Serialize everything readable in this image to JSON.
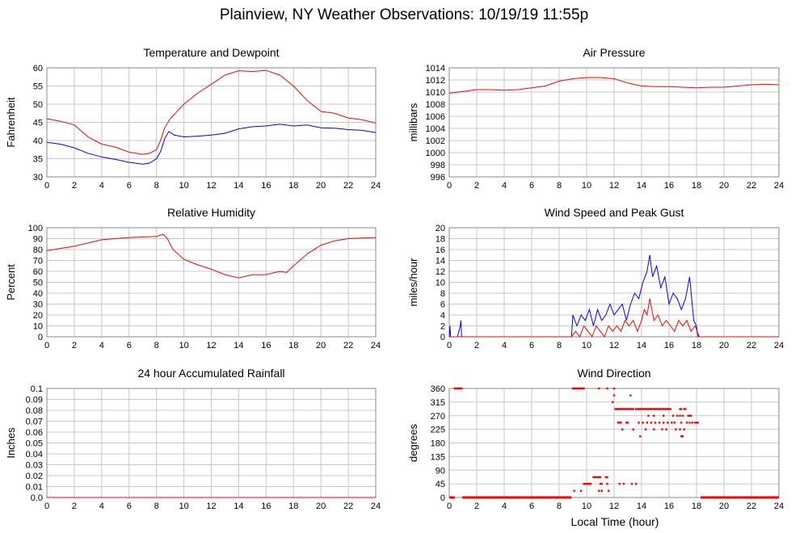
{
  "page_title": "Plainview, NY Weather Observations: 10/19/19 11:55p",
  "x_axis_label": "Local Time (hour)",
  "colors": {
    "red": "#ff0000",
    "blue": "#0000ff",
    "grid": "#c8c8c8",
    "frame": "#888888"
  },
  "chart_data": [
    {
      "id": "temp",
      "type": "line",
      "title": "Temperature and Dewpoint",
      "ylabel": "Fahrenheit",
      "xlabel": "",
      "xlim": [
        0,
        24
      ],
      "ylim": [
        30,
        60
      ],
      "x_ticks": [
        0,
        2,
        4,
        6,
        8,
        10,
        12,
        14,
        16,
        18,
        20,
        22,
        24
      ],
      "y_ticks": [
        30,
        35,
        40,
        45,
        50,
        55,
        60
      ],
      "grid": true,
      "series": [
        {
          "color": "#ff0000",
          "x": [
            0,
            1,
            2,
            3,
            4,
            5,
            6,
            7,
            7.5,
            8,
            8.3,
            8.6,
            9,
            10,
            11,
            12,
            13,
            14,
            15,
            16,
            17,
            18,
            19,
            20,
            21,
            22,
            23,
            24
          ],
          "y": [
            46,
            45.3,
            44.3,
            41,
            39,
            38.2,
            36.8,
            36.2,
            36.5,
            37.5,
            40,
            43.5,
            46,
            50,
            53,
            55.5,
            58,
            59.2,
            59,
            59.3,
            58,
            55,
            51,
            48,
            47.5,
            46.2,
            45.7,
            44.8
          ]
        },
        {
          "color": "#0000ff",
          "x": [
            0,
            1,
            2,
            3,
            4,
            5,
            6,
            7,
            7.5,
            8,
            8.3,
            8.6,
            8.9,
            9.3,
            10,
            11,
            12,
            13,
            14,
            15,
            16,
            17,
            18,
            19,
            20,
            21,
            22,
            23,
            24
          ],
          "y": [
            39.5,
            39,
            38,
            36.5,
            35.5,
            34.8,
            34,
            33.5,
            33.8,
            35,
            37,
            40.5,
            42.5,
            41.5,
            41,
            41.2,
            41.5,
            42,
            43.2,
            43.8,
            44,
            44.5,
            44,
            44.3,
            43.5,
            43.4,
            43,
            42.8,
            42.2
          ]
        }
      ]
    },
    {
      "id": "pressure",
      "type": "line",
      "title": "Air Pressure",
      "ylabel": "millibars",
      "xlabel": "",
      "xlim": [
        0,
        24
      ],
      "ylim": [
        996,
        1014
      ],
      "x_ticks": [
        0,
        2,
        4,
        6,
        8,
        10,
        12,
        14,
        16,
        18,
        20,
        22,
        24
      ],
      "y_ticks": [
        996,
        998,
        1000,
        1002,
        1004,
        1006,
        1008,
        1010,
        1012,
        1014
      ],
      "grid": true,
      "series": [
        {
          "color": "#ff0000",
          "x": [
            0,
            1,
            2,
            3,
            4,
            5,
            6,
            7,
            8,
            9,
            10,
            11,
            12,
            13,
            14,
            15,
            16,
            17,
            18,
            19,
            20,
            21,
            22,
            23,
            24
          ],
          "y": [
            1009.8,
            1010.1,
            1010.4,
            1010.4,
            1010.3,
            1010.4,
            1010.7,
            1011,
            1011.8,
            1012.2,
            1012.4,
            1012.4,
            1012.2,
            1011.5,
            1011,
            1010.9,
            1010.9,
            1010.8,
            1010.7,
            1010.8,
            1010.8,
            1011,
            1011.2,
            1011.3,
            1011.2
          ]
        }
      ]
    },
    {
      "id": "humidity",
      "type": "line",
      "title": "Relative Humidity",
      "ylabel": "Percent",
      "xlabel": "",
      "xlim": [
        0,
        24
      ],
      "ylim": [
        0,
        100
      ],
      "x_ticks": [
        0,
        2,
        4,
        6,
        8,
        10,
        12,
        14,
        16,
        18,
        20,
        22,
        24
      ],
      "y_ticks": [
        0,
        10,
        20,
        30,
        40,
        50,
        60,
        70,
        80,
        90,
        100
      ],
      "grid": true,
      "series": [
        {
          "color": "#ff0000",
          "x": [
            0,
            1,
            2,
            3,
            4,
            5,
            6,
            7,
            8,
            8.5,
            8.8,
            9.2,
            10,
            11,
            12,
            13,
            14,
            15,
            16,
            17,
            17.5,
            18,
            19,
            20,
            21,
            22,
            23,
            24
          ],
          "y": [
            79,
            81,
            83,
            86,
            89,
            90,
            91,
            91.5,
            92,
            94,
            90,
            80,
            71,
            66,
            62,
            57,
            54,
            57,
            57,
            60,
            59,
            65,
            76,
            84,
            88,
            90,
            90.5,
            91
          ]
        }
      ]
    },
    {
      "id": "wind",
      "type": "line",
      "title": "Wind Speed and Peak Gust",
      "ylabel": "miles/hour",
      "xlabel": "",
      "xlim": [
        0,
        24
      ],
      "ylim": [
        0,
        20
      ],
      "x_ticks": [
        0,
        2,
        4,
        6,
        8,
        10,
        12,
        14,
        16,
        18,
        20,
        22,
        24
      ],
      "y_ticks": [
        0,
        2,
        4,
        6,
        8,
        10,
        12,
        14,
        16,
        18,
        20
      ],
      "grid": true,
      "series": [
        {
          "color": "#0000ff",
          "x": [
            0,
            0.05,
            0.1,
            0.2,
            0.6,
            0.8,
            0.85,
            0.9,
            1,
            8.9,
            9.0,
            9.3,
            9.6,
            9.9,
            10.2,
            10.5,
            10.8,
            11.1,
            11.4,
            11.7,
            12,
            12.3,
            12.6,
            12.9,
            13.2,
            13.5,
            13.8,
            14.1,
            14.4,
            14.6,
            14.8,
            15.1,
            15.4,
            15.7,
            16,
            16.3,
            16.6,
            16.9,
            17.2,
            17.5,
            17.8,
            18,
            18.1,
            24
          ],
          "y": [
            0,
            2,
            0,
            0,
            0,
            2,
            3,
            0,
            0,
            0,
            4,
            2,
            4,
            3,
            5,
            2,
            5,
            3,
            4,
            6,
            4,
            5,
            6,
            3,
            6,
            8,
            7,
            10,
            12,
            15,
            11,
            13,
            9,
            11,
            6,
            8,
            7,
            5,
            7,
            11,
            3,
            2,
            0,
            0
          ]
        },
        {
          "color": "#ff0000",
          "x": [
            0,
            8.9,
            9.2,
            9.5,
            9.8,
            10.1,
            10.4,
            10.7,
            11,
            11.3,
            11.6,
            11.9,
            12.2,
            12.5,
            12.8,
            13.1,
            13.4,
            13.7,
            14,
            14.2,
            14.4,
            14.6,
            14.9,
            15.2,
            15.5,
            15.8,
            16.1,
            16.4,
            16.7,
            17,
            17.3,
            17.6,
            17.9,
            18.2,
            24
          ],
          "y": [
            0,
            0,
            1,
            0,
            2,
            1,
            0,
            2,
            1,
            0,
            2,
            1,
            2,
            1,
            3,
            2,
            3,
            1,
            3,
            5,
            4,
            7,
            3,
            4,
            2,
            3,
            2,
            1,
            3,
            2,
            3,
            1,
            2,
            0,
            0
          ]
        }
      ]
    },
    {
      "id": "rain",
      "type": "line",
      "title": "24 hour Accumulated Rainfall",
      "ylabel": "Inches",
      "xlabel": "",
      "xlim": [
        0,
        24
      ],
      "ylim": [
        0,
        0.1
      ],
      "x_ticks": [
        0,
        2,
        4,
        6,
        8,
        10,
        12,
        14,
        16,
        18,
        20,
        22,
        24
      ],
      "y_ticks": [
        0.0,
        0.01,
        0.02,
        0.03,
        0.04,
        0.05,
        0.06,
        0.07,
        0.08,
        0.09,
        0.1
      ],
      "y_tick_labels": [
        "0.0",
        "0.01",
        "0.02",
        "0.03",
        "0.04",
        "0.05",
        "0.06",
        "0.07",
        "0.08",
        "0.09",
        "0.1"
      ],
      "grid": true,
      "series": [
        {
          "color": "#ff0000",
          "x": [
            0,
            24
          ],
          "y": [
            0,
            0
          ]
        }
      ]
    },
    {
      "id": "direction",
      "type": "scatter",
      "title": "Wind Direction",
      "ylabel": "degrees",
      "xlabel": "Local Time (hour)",
      "xlim": [
        0,
        24
      ],
      "ylim": [
        0,
        360
      ],
      "x_ticks": [
        0,
        2,
        4,
        6,
        8,
        10,
        12,
        14,
        16,
        18,
        20,
        22,
        24
      ],
      "y_ticks": [
        0,
        45,
        90,
        135,
        180,
        225,
        270,
        315,
        360
      ],
      "grid": true,
      "series": [
        {
          "color": "#ff0000",
          "x": [
            0.4,
            0.5,
            0.6,
            0.7,
            0.8,
            0.9,
            9.0,
            9.1,
            9.2,
            9.3,
            9.4,
            9.5,
            9.6,
            9.7,
            9.8,
            10.9,
            11.5,
            9.1,
            9.6,
            9.8,
            10.5,
            10.6,
            10.7,
            10.8,
            10.9,
            11.0,
            11.4,
            11.5,
            9.9,
            10.0,
            10.1,
            10.2,
            10.3,
            10.9,
            11.1,
            11.6,
            11.0,
            11.1,
            11.5,
            11.9,
            12.0,
            12.1,
            12.2,
            12.3,
            12.4,
            12.5,
            12.6,
            12.7,
            12.8,
            12.9,
            13.0,
            13.1,
            13.2,
            13.3,
            13.4,
            13.6,
            13.7,
            13.8,
            13.9,
            14.0,
            14.1,
            14.2,
            14.3,
            14.4,
            14.5,
            14.6,
            14.7,
            14.8,
            14.9,
            15.0,
            15.1,
            15.2,
            15.3,
            15.4,
            15.5,
            15.6,
            15.7,
            15.8,
            15.9,
            16.0,
            16.1,
            16.8,
            16.9,
            17.1,
            17.2,
            14.5,
            14.9,
            15.6,
            16.3,
            16.6,
            16.8,
            17.0,
            17.4,
            17.5,
            17.6,
            12.3,
            12.4,
            12.5,
            12.9,
            13.0,
            13.8,
            14.1,
            14.4,
            14.7,
            15.0,
            15.3,
            15.6,
            15.9,
            16.2,
            16.4,
            16.9,
            17.3,
            17.5,
            17.7,
            17.9,
            18.0,
            18.1,
            12.6,
            13.4,
            14.3,
            14.9,
            15.5,
            15.8,
            16.5,
            16.8,
            17.1,
            13.9,
            16.9,
            17.0,
            12.0,
            12.2,
            13.2,
            12.4,
            12.7,
            13.3,
            13.6
          ],
          "y": [
            360,
            360,
            360,
            360,
            360,
            360,
            360,
            360,
            360,
            360,
            360,
            360,
            360,
            360,
            360,
            360,
            360,
            22,
            22,
            45,
            67,
            67,
            67,
            67,
            67,
            67,
            67,
            67,
            45,
            45,
            45,
            45,
            45,
            22,
            22,
            22,
            45,
            45,
            45,
            315,
            337,
            292,
            292,
            292,
            292,
            292,
            292,
            292,
            292,
            292,
            292,
            292,
            292,
            292,
            292,
            292,
            292,
            292,
            292,
            292,
            292,
            292,
            292,
            292,
            292,
            292,
            292,
            292,
            292,
            292,
            292,
            292,
            292,
            292,
            292,
            292,
            292,
            292,
            292,
            292,
            292,
            292,
            292,
            292,
            292,
            270,
            270,
            270,
            270,
            270,
            270,
            270,
            270,
            270,
            270,
            247,
            247,
            247,
            247,
            247,
            247,
            247,
            247,
            247,
            247,
            247,
            247,
            247,
            247,
            247,
            247,
            247,
            247,
            247,
            247,
            247,
            247,
            225,
            225,
            225,
            225,
            225,
            225,
            225,
            225,
            225,
            202,
            202,
            202,
            360,
            292,
            337,
            45,
            45,
            45,
            45
          ]
        }
      ],
      "calm_segments": [
        [
          0,
          0.4
        ],
        [
          0.95,
          8.9
        ],
        [
          18.3,
          24
        ]
      ],
      "calm_value": 0
    }
  ]
}
